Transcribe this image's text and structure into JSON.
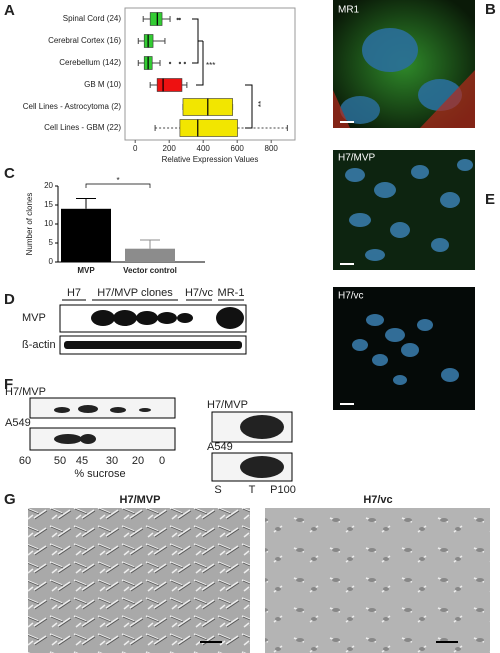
{
  "chart_data": [
    {
      "type": "box",
      "categories": [
        "Spinal Cord (24)",
        "Cerebral Cortex (16)",
        "Cerebellum (142)",
        "GB M (10)",
        "Cell Lines - Astrocytoma (2)",
        "Cell Lines - GBM (22)"
      ],
      "colors": [
        "#33cc33",
        "#33cc33",
        "#33cc33",
        "#ee1111",
        "#f2e600",
        "#f2e600"
      ],
      "boxes": [
        {
          "min": 47,
          "q1": 88,
          "median": 130,
          "q3": 158,
          "max": 205,
          "outliers": [
            250,
            262
          ]
        },
        {
          "min": 18,
          "q1": 53,
          "median": 76,
          "q3": 105,
          "max": 175,
          "outliers": []
        },
        {
          "min": 18,
          "q1": 53,
          "median": 76,
          "q3": 100,
          "max": 146,
          "outliers": [
            205,
            263,
            292
          ]
        },
        {
          "min": 88,
          "q1": 129,
          "median": 164,
          "q3": 275,
          "max": 304,
          "outliers": []
        },
        {
          "min": 281,
          "q1": 281,
          "median": 427,
          "q3": 573,
          "max": 573,
          "outliers": []
        },
        {
          "min": 117,
          "q1": 263,
          "median": 368,
          "q3": 602,
          "max": 895,
          "outliers": []
        }
      ],
      "xlabel": "Relative Expression Values",
      "xlim": [
        -60,
        940
      ],
      "xticks": [
        0,
        200,
        400,
        600,
        800
      ],
      "annotations": [
        "***",
        "**"
      ]
    },
    {
      "type": "bar",
      "categories": [
        "MVP",
        "Vector control"
      ],
      "values": [
        14,
        3.5
      ],
      "errors": [
        2.7,
        2.3
      ],
      "colors": [
        "#000000",
        "#8c8c8c"
      ],
      "ylabel": "Number of clones",
      "ylim": [
        0,
        20
      ],
      "yticks": [
        0,
        5,
        10,
        15,
        20
      ],
      "annotation": "*"
    }
  ],
  "panel_labels": [
    "A",
    "B",
    "C",
    "D",
    "E",
    "F",
    "G"
  ],
  "panel_b": {
    "label": "MR1"
  },
  "panel_d": {
    "lanes": [
      "H7",
      "H7/MVP clones",
      "H7/vc",
      "MR-1"
    ],
    "rows": [
      "MVP",
      "ß-actin"
    ]
  },
  "panel_e": {
    "labels": [
      "H7/MVP",
      "H7/vc"
    ]
  },
  "panel_f": {
    "left": {
      "rows": [
        "H7/MVP",
        "A549"
      ],
      "fractions": [
        "60",
        "50",
        "45",
        "30",
        "20",
        "0"
      ],
      "xlabel": "% sucrose"
    },
    "right": {
      "rows": [
        "H7/MVP",
        "A549"
      ],
      "fractions": [
        "S",
        "T",
        "P100"
      ]
    }
  },
  "panel_g": {
    "labels": [
      "H7/MVP",
      "H7/vc"
    ]
  }
}
